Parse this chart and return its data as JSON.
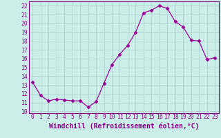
{
  "x": [
    0,
    1,
    2,
    3,
    4,
    5,
    6,
    7,
    8,
    9,
    10,
    11,
    12,
    13,
    14,
    15,
    16,
    17,
    18,
    19,
    20,
    21,
    22,
    23
  ],
  "y": [
    13.3,
    11.8,
    11.2,
    11.4,
    11.3,
    11.2,
    11.2,
    10.5,
    11.1,
    13.2,
    15.3,
    16.5,
    17.5,
    19.0,
    21.2,
    21.5,
    22.0,
    21.7,
    20.2,
    19.6,
    18.1,
    18.0,
    15.9,
    16.1
  ],
  "line_color": "#990099",
  "marker": "D",
  "marker_size": 2.5,
  "bg_color": "#cceee8",
  "grid_color": "#aacccc",
  "xlabel": "Windchill (Refroidissement éolien,°C)",
  "ylabel": "",
  "xlim": [
    -0.5,
    23.5
  ],
  "ylim": [
    9.8,
    22.5
  ],
  "yticks": [
    10,
    11,
    12,
    13,
    14,
    15,
    16,
    17,
    18,
    19,
    20,
    21,
    22
  ],
  "xticks": [
    0,
    1,
    2,
    3,
    4,
    5,
    6,
    7,
    8,
    9,
    10,
    11,
    12,
    13,
    14,
    15,
    16,
    17,
    18,
    19,
    20,
    21,
    22,
    23
  ],
  "label_color": "#880088",
  "tick_fontsize": 5.8,
  "xlabel_fontsize": 7.0
}
